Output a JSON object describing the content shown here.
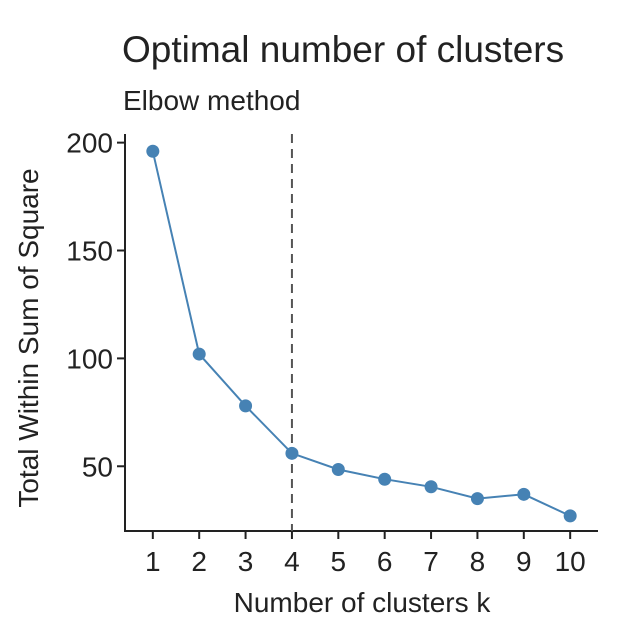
{
  "chart_data": {
    "type": "line",
    "title": "Optimal number of clusters",
    "subtitle": "Elbow method",
    "xlabel": "Number of clusters k",
    "ylabel": "Total Within Sum of Square",
    "x": [
      1,
      2,
      3,
      4,
      5,
      6,
      7,
      8,
      9,
      10
    ],
    "x_tick_labels": [
      "1",
      "2",
      "3",
      "4",
      "5",
      "6",
      "7",
      "8",
      "9",
      "10"
    ],
    "series": [
      {
        "values": [
          196,
          102,
          78,
          56,
          48.5,
          44,
          40.5,
          35,
          37,
          27
        ]
      }
    ],
    "y_ticks": [
      50,
      100,
      150,
      200
    ],
    "y_tick_labels": [
      "50",
      "100",
      "150",
      "200"
    ],
    "xlim": [
      0.4,
      10.6
    ],
    "ylim": [
      20,
      204
    ],
    "reference_line": {
      "x": 4,
      "style": "dashed"
    },
    "grid": false,
    "legend": "none",
    "colors": {
      "series": "#4682b4",
      "reference_line": "#555555",
      "axis": "#222222"
    }
  }
}
